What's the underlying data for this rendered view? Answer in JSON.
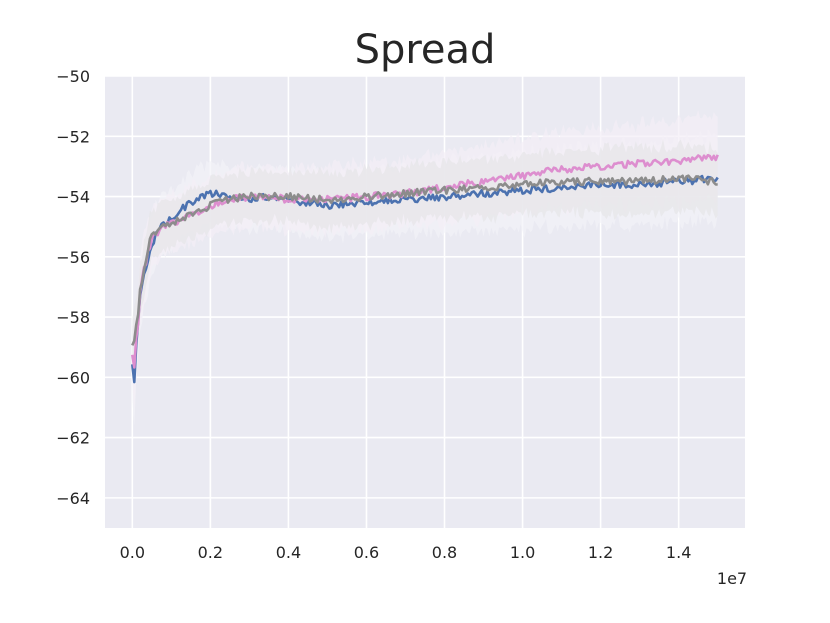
{
  "chart_data": {
    "type": "line",
    "title": "Spread",
    "xlabel": "",
    "ylabel": "",
    "x_offset_label": "1e7",
    "xlim": [
      -0.07,
      1.57
    ],
    "ylim": [
      -65,
      -50
    ],
    "x_ticks": [
      0.0,
      0.2,
      0.4,
      0.6,
      0.8,
      1.0,
      1.2,
      1.4
    ],
    "x_tick_labels": [
      "0.0",
      "0.2",
      "0.4",
      "0.6",
      "0.8",
      "1.0",
      "1.2",
      "1.4"
    ],
    "y_ticks": [
      -64,
      -62,
      -60,
      -58,
      -56,
      -54,
      -52,
      -50
    ],
    "y_tick_labels": [
      "−64",
      "−62",
      "−60",
      "−58",
      "−56",
      "−54",
      "−52",
      "−50"
    ],
    "grid": true,
    "background": "#eaeaf2",
    "series": [
      {
        "color": "#4c72b0",
        "band_color": "#f2f2f8",
        "x": [
          0.0,
          0.005,
          0.01,
          0.02,
          0.03,
          0.05,
          0.07,
          0.1,
          0.15,
          0.2,
          0.25,
          0.3,
          0.35,
          0.4,
          0.5,
          0.6,
          0.7,
          0.8,
          0.9,
          1.0,
          1.1,
          1.2,
          1.3,
          1.4,
          1.5
        ],
        "y": [
          -59.5,
          -60.3,
          -59.0,
          -57.4,
          -56.5,
          -55.6,
          -55.0,
          -54.7,
          -54.2,
          -53.9,
          -54.0,
          -54.1,
          -54.0,
          -54.1,
          -54.3,
          -54.2,
          -54.1,
          -54.0,
          -53.9,
          -53.8,
          -53.7,
          -53.6,
          -53.6,
          -53.5,
          -53.4
        ],
        "band": [
          1.2,
          1.5,
          1.4,
          1.2,
          1.1,
          1.0,
          1.0,
          1.0,
          1.0,
          1.0,
          1.0,
          1.0,
          1.0,
          1.0,
          1.1,
          1.1,
          1.1,
          1.2,
          1.2,
          1.3,
          1.3,
          1.3,
          1.4,
          1.4,
          1.4
        ]
      },
      {
        "color": "#dd8ecf",
        "band_color": "#f4eef6",
        "x": [
          0.0,
          0.005,
          0.01,
          0.02,
          0.03,
          0.05,
          0.07,
          0.1,
          0.15,
          0.2,
          0.25,
          0.3,
          0.35,
          0.4,
          0.5,
          0.6,
          0.7,
          0.8,
          0.9,
          1.0,
          1.1,
          1.2,
          1.3,
          1.4,
          1.5
        ],
        "y": [
          -59.3,
          -59.8,
          -58.8,
          -57.3,
          -56.4,
          -55.4,
          -55.1,
          -54.9,
          -54.6,
          -54.3,
          -54.1,
          -54.0,
          -54.0,
          -54.1,
          -54.1,
          -54.0,
          -53.9,
          -53.7,
          -53.5,
          -53.3,
          -53.1,
          -53.0,
          -52.9,
          -52.8,
          -52.7
        ],
        "band": [
          1.1,
          1.4,
          1.3,
          1.1,
          1.1,
          1.0,
          1.0,
          1.0,
          1.0,
          1.0,
          1.0,
          1.0,
          1.0,
          1.0,
          1.1,
          1.1,
          1.1,
          1.2,
          1.2,
          1.2,
          1.3,
          1.3,
          1.3,
          1.4,
          1.4
        ]
      },
      {
        "color": "#8c8c8c",
        "band_color": "#e6e6e8",
        "x": [
          0.0,
          0.005,
          0.01,
          0.02,
          0.03,
          0.05,
          0.07,
          0.1,
          0.15,
          0.2,
          0.25,
          0.3,
          0.35,
          0.4,
          0.5,
          0.6,
          0.7,
          0.8,
          0.9,
          1.0,
          1.1,
          1.2,
          1.3,
          1.4,
          1.5
        ],
        "y": [
          -58.8,
          -58.9,
          -58.4,
          -57.2,
          -56.3,
          -55.3,
          -55.1,
          -54.9,
          -54.6,
          -54.3,
          -54.1,
          -54.0,
          -54.0,
          -54.0,
          -54.1,
          -54.0,
          -53.9,
          -53.8,
          -53.7,
          -53.6,
          -53.5,
          -53.5,
          -53.5,
          -53.4,
          -53.5
        ],
        "band": [
          0.8,
          1.1,
          1.0,
          0.9,
          0.9,
          0.8,
          0.8,
          0.8,
          0.8,
          0.8,
          0.8,
          0.8,
          0.8,
          0.8,
          0.9,
          0.9,
          0.9,
          0.9,
          1.0,
          1.0,
          1.0,
          1.1,
          1.1,
          1.1,
          1.1
        ]
      }
    ]
  }
}
